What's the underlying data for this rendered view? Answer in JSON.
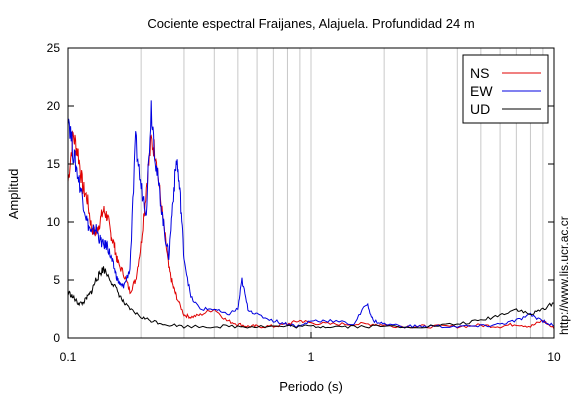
{
  "chart_data": {
    "type": "line",
    "title": "Cociente espectral Fraijanes, Alajuela. Profundidad 24 m",
    "xlabel": "Periodo (s)",
    "ylabel": "Amplitud",
    "xscale": "log",
    "xlim": [
      0.1,
      10
    ],
    "ylim": [
      0,
      25
    ],
    "xticks": [
      0.1,
      1,
      10
    ],
    "xtick_labels": [
      "0.1",
      "1",
      "10"
    ],
    "yticks": [
      0,
      5,
      10,
      15,
      20,
      25
    ],
    "ytick_labels": [
      "0",
      "5",
      "10",
      "15",
      "20",
      "25"
    ],
    "grid": "vertical-minor",
    "legend_position": "top-right",
    "watermark": "http://www.lis.ucr.ac.cr",
    "series": [
      {
        "name": "NS",
        "color": "#e00000",
        "x": [
          0.1,
          0.105,
          0.11,
          0.115,
          0.12,
          0.125,
          0.13,
          0.135,
          0.14,
          0.145,
          0.15,
          0.155,
          0.16,
          0.17,
          0.18,
          0.19,
          0.2,
          0.21,
          0.22,
          0.23,
          0.24,
          0.25,
          0.26,
          0.27,
          0.28,
          0.3,
          0.32,
          0.35,
          0.4,
          0.45,
          0.5,
          0.55,
          0.6,
          0.7,
          0.8,
          0.9,
          1.0,
          1.2,
          1.5,
          1.8,
          2.0,
          2.5,
          3.0,
          4.0,
          5.0,
          6.0,
          7.0,
          8.0,
          9.0,
          10.0
        ],
        "y": [
          13.5,
          17.5,
          16.0,
          13.0,
          12.0,
          9.5,
          9.0,
          10.0,
          11.0,
          10.5,
          9.0,
          8.0,
          6.5,
          5.5,
          4.0,
          5.0,
          8.0,
          13.0,
          17.0,
          16.0,
          12.0,
          9.0,
          6.0,
          4.5,
          3.5,
          2.0,
          1.8,
          2.0,
          2.5,
          1.5,
          1.2,
          1.0,
          1.0,
          1.0,
          1.2,
          1.5,
          1.3,
          1.2,
          1.2,
          1.2,
          1.1,
          1.0,
          1.0,
          1.0,
          1.1,
          1.0,
          1.2,
          1.0,
          1.5,
          0.8
        ]
      },
      {
        "name": "EW",
        "color": "#0000e0",
        "x": [
          0.1,
          0.105,
          0.11,
          0.115,
          0.12,
          0.125,
          0.13,
          0.135,
          0.14,
          0.145,
          0.15,
          0.155,
          0.16,
          0.165,
          0.17,
          0.18,
          0.19,
          0.2,
          0.21,
          0.22,
          0.23,
          0.24,
          0.25,
          0.26,
          0.27,
          0.28,
          0.29,
          0.3,
          0.32,
          0.35,
          0.4,
          0.45,
          0.5,
          0.52,
          0.55,
          0.6,
          0.7,
          0.8,
          0.9,
          1.0,
          1.2,
          1.5,
          1.7,
          1.8,
          2.0,
          2.5,
          3.0,
          4.0,
          5.0,
          6.0,
          7.0,
          8.0,
          9.0,
          10.0
        ],
        "y": [
          19.5,
          16.0,
          14.0,
          12.0,
          10.0,
          9.0,
          9.5,
          8.5,
          8.0,
          8.0,
          7.0,
          6.0,
          5.0,
          4.5,
          4.5,
          6.0,
          17.0,
          13.0,
          11.0,
          20.0,
          15.0,
          12.0,
          9.0,
          7.0,
          12.0,
          15.5,
          12.0,
          7.0,
          3.5,
          2.5,
          2.5,
          2.0,
          2.5,
          5.0,
          2.5,
          2.0,
          1.5,
          1.2,
          1.0,
          1.5,
          1.5,
          1.2,
          3.0,
          1.5,
          1.2,
          1.0,
          1.0,
          1.0,
          1.0,
          1.2,
          1.5,
          2.0,
          1.5,
          1.0
        ]
      },
      {
        "name": "UD",
        "color": "#000000",
        "x": [
          0.1,
          0.105,
          0.11,
          0.115,
          0.12,
          0.125,
          0.13,
          0.135,
          0.14,
          0.15,
          0.16,
          0.17,
          0.18,
          0.2,
          0.22,
          0.25,
          0.3,
          0.4,
          0.5,
          0.6,
          0.8,
          1.0,
          1.2,
          1.5,
          2.0,
          3.0,
          4.0,
          5.0,
          6.0,
          7.0,
          8.0,
          9.0,
          10.0
        ],
        "y": [
          4.0,
          3.5,
          3.0,
          3.0,
          3.5,
          4.0,
          5.0,
          5.5,
          6.0,
          5.0,
          4.0,
          3.0,
          2.5,
          1.8,
          1.5,
          1.2,
          1.0,
          1.0,
          1.0,
          1.0,
          1.0,
          1.0,
          1.0,
          1.0,
          1.0,
          1.0,
          1.2,
          1.5,
          2.0,
          2.5,
          2.0,
          2.5,
          3.0
        ]
      }
    ]
  }
}
